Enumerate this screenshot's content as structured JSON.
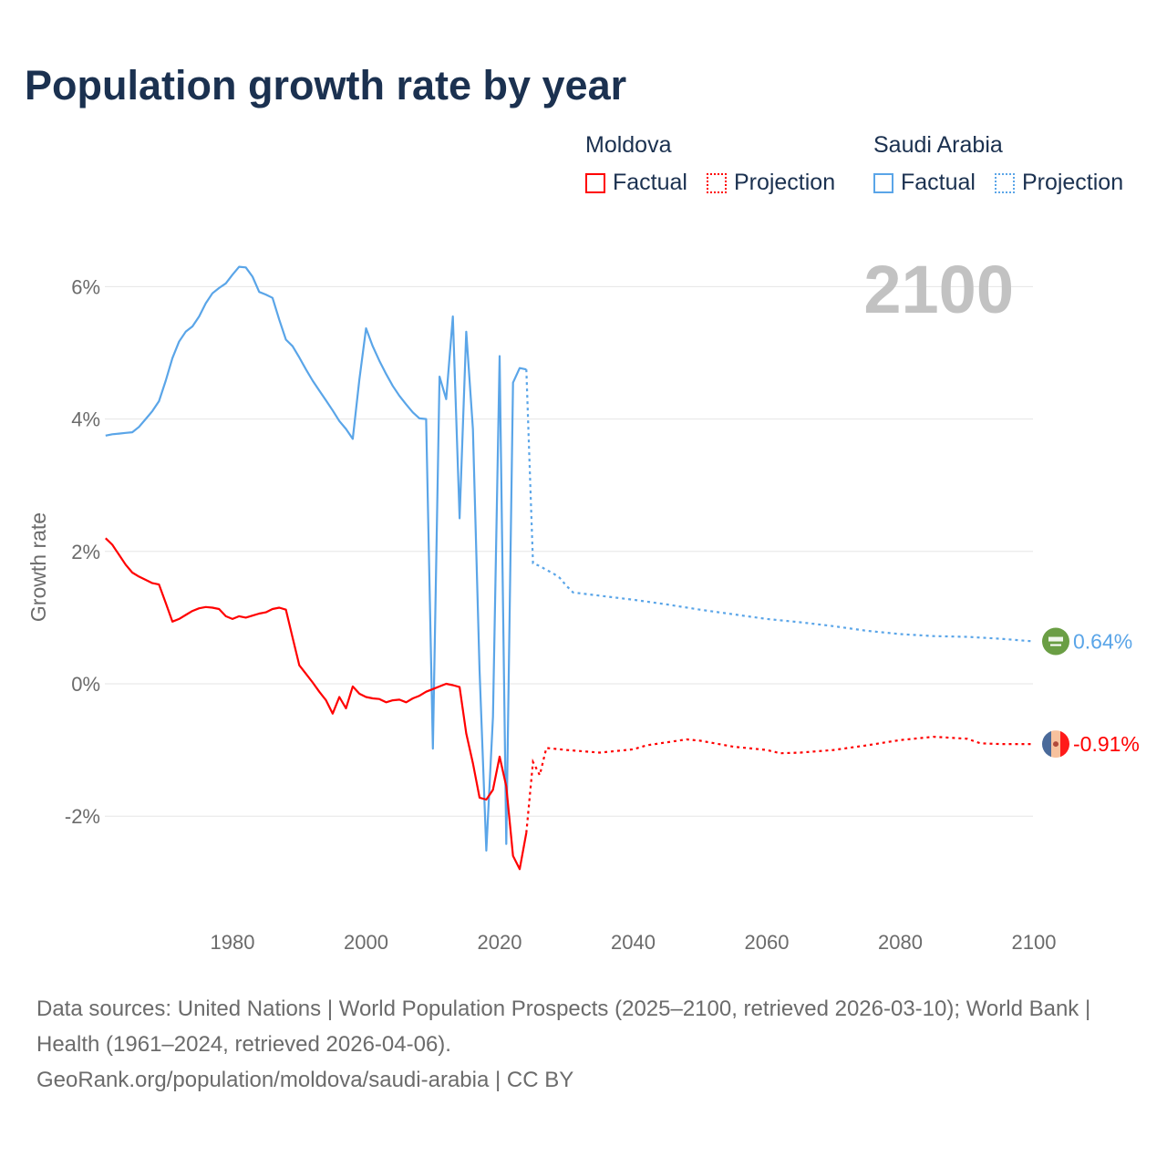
{
  "title": "Population growth rate by year",
  "legend": [
    {
      "group": "Moldova",
      "factual": "Factual",
      "projection": "Projection",
      "color": "#ff0000"
    },
    {
      "group": "Saudi Arabia",
      "factual": "Factual",
      "projection": "Projection",
      "color": "#5aa5e8"
    }
  ],
  "footer": {
    "sources": "Data sources: United Nations | World Population Prospects (2025–2100, retrieved 2026-03-10); World Bank | Health (1961–2024, retrieved 2026-04-06).",
    "link": "GeoRank.org/population/moldova/saudi-arabia | CC BY"
  },
  "chart_data": {
    "type": "line",
    "title": "Population growth rate by year",
    "ylabel": "Growth rate",
    "xlabel": "",
    "year_watermark": "2100",
    "xlim": [
      1961,
      2100
    ],
    "ylim": [
      -3.4,
      6.8
    ],
    "xticks": [
      1980,
      2000,
      2020,
      2040,
      2060,
      2080,
      2100
    ],
    "yticks": [
      {
        "v": 6,
        "label": "6%"
      },
      {
        "v": 4,
        "label": "4%"
      },
      {
        "v": 2,
        "label": "2%"
      },
      {
        "v": 0,
        "label": "0%"
      },
      {
        "v": -2,
        "label": "-2%"
      }
    ],
    "grid": true,
    "series": [
      {
        "name": "Saudi Arabia",
        "color": "#5aa5e8",
        "end_label": "0.64%",
        "flag": "saudi-arabia-flag",
        "factual": {
          "x": [
            1961,
            1962,
            1963,
            1964,
            1965,
            1966,
            1967,
            1968,
            1969,
            1970,
            1971,
            1972,
            1973,
            1974,
            1975,
            1976,
            1977,
            1978,
            1979,
            1980,
            1981,
            1982,
            1983,
            1984,
            1985,
            1986,
            1987,
            1988,
            1989,
            1990,
            1991,
            1992,
            1993,
            1994,
            1995,
            1996,
            1997,
            1998,
            1999,
            2000,
            2001,
            2002,
            2003,
            2004,
            2005,
            2006,
            2007,
            2008,
            2009,
            2010,
            2011,
            2012,
            2013,
            2014,
            2015,
            2016,
            2017,
            2018,
            2019,
            2020,
            2021,
            2022,
            2023,
            2024
          ],
          "y": [
            3.75,
            3.77,
            3.78,
            3.79,
            3.8,
            3.88,
            4.0,
            4.12,
            4.27,
            4.58,
            4.92,
            5.17,
            5.32,
            5.4,
            5.55,
            5.75,
            5.9,
            5.98,
            6.05,
            6.18,
            6.3,
            6.29,
            6.15,
            5.92,
            5.88,
            5.83,
            5.5,
            5.2,
            5.1,
            4.93,
            4.75,
            4.58,
            4.43,
            4.28,
            4.13,
            3.97,
            3.85,
            3.7,
            4.6,
            5.37,
            5.1,
            4.88,
            4.68,
            4.5,
            4.35,
            4.22,
            4.1,
            4.01,
            4.0,
            -0.98,
            4.64,
            4.3,
            5.55,
            2.5,
            5.32,
            3.85,
            0.2,
            -2.52,
            -0.5,
            4.95,
            -2.42,
            4.55,
            4.77,
            4.75
          ]
        },
        "projection": {
          "x": [
            2024,
            2025,
            2026,
            2027,
            2028,
            2029,
            2030,
            2031,
            2035,
            2040,
            2045,
            2050,
            2055,
            2060,
            2065,
            2070,
            2075,
            2080,
            2085,
            2090,
            2095,
            2100
          ],
          "y": [
            4.75,
            1.82,
            1.78,
            1.72,
            1.67,
            1.6,
            1.48,
            1.38,
            1.33,
            1.27,
            1.2,
            1.12,
            1.05,
            0.98,
            0.93,
            0.87,
            0.8,
            0.75,
            0.72,
            0.71,
            0.68,
            0.64
          ]
        }
      },
      {
        "name": "Moldova",
        "color": "#ff0000",
        "end_label": "-0.91%",
        "flag": "moldova-flag",
        "factual": {
          "x": [
            1961,
            1962,
            1963,
            1964,
            1965,
            1966,
            1967,
            1968,
            1969,
            1970,
            1971,
            1972,
            1973,
            1974,
            1975,
            1976,
            1977,
            1978,
            1979,
            1980,
            1981,
            1982,
            1983,
            1984,
            1985,
            1986,
            1987,
            1988,
            1989,
            1990,
            1991,
            1992,
            1993,
            1994,
            1995,
            1996,
            1997,
            1998,
            1999,
            2000,
            2001,
            2002,
            2003,
            2004,
            2005,
            2006,
            2007,
            2008,
            2009,
            2010,
            2011,
            2012,
            2013,
            2014,
            2015,
            2016,
            2017,
            2018,
            2019,
            2020,
            2021,
            2022,
            2023,
            2024
          ],
          "y": [
            2.2,
            2.1,
            1.95,
            1.8,
            1.68,
            1.62,
            1.57,
            1.52,
            1.5,
            1.22,
            0.94,
            0.98,
            1.04,
            1.1,
            1.14,
            1.16,
            1.15,
            1.13,
            1.02,
            0.98,
            1.02,
            1.0,
            1.03,
            1.06,
            1.08,
            1.13,
            1.15,
            1.12,
            0.7,
            0.28,
            0.15,
            0.02,
            -0.12,
            -0.25,
            -0.45,
            -0.2,
            -0.37,
            -0.04,
            -0.15,
            -0.2,
            -0.22,
            -0.23,
            -0.28,
            -0.25,
            -0.24,
            -0.28,
            -0.22,
            -0.18,
            -0.12,
            -0.08,
            -0.04,
            0.0,
            -0.02,
            -0.05,
            -0.75,
            -1.2,
            -1.72,
            -1.75,
            -1.6,
            -1.1,
            -1.55,
            -2.6,
            -2.8,
            -2.25
          ]
        },
        "projection": {
          "x": [
            2024,
            2025,
            2026,
            2027,
            2030,
            2035,
            2040,
            2042,
            2048,
            2050,
            2055,
            2060,
            2062,
            2065,
            2070,
            2075,
            2080,
            2085,
            2090,
            2092,
            2095,
            2100
          ],
          "y": [
            -2.25,
            -1.18,
            -1.38,
            -0.97,
            -1.0,
            -1.04,
            -0.99,
            -0.93,
            -0.84,
            -0.86,
            -0.95,
            -1.0,
            -1.05,
            -1.04,
            -1.0,
            -0.93,
            -0.85,
            -0.8,
            -0.83,
            -0.9,
            -0.91,
            -0.91
          ]
        }
      }
    ]
  }
}
